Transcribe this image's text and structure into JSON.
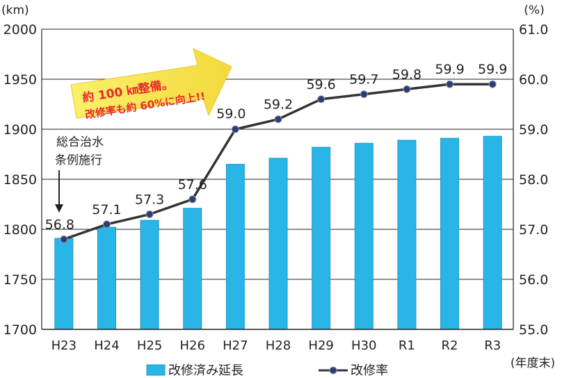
{
  "chart_data": {
    "type": "bar+line",
    "categories": [
      "H23",
      "H24",
      "H25",
      "H26",
      "H27",
      "H28",
      "H29",
      "H30",
      "R1",
      "R2",
      "R3"
    ],
    "series": [
      {
        "name": "改修済み延長",
        "type": "bar",
        "axis": "left",
        "values": [
          1791,
          1802,
          1809,
          1821,
          1865,
          1871,
          1882,
          1886,
          1889,
          1891,
          1893
        ]
      },
      {
        "name": "改修率",
        "type": "line",
        "axis": "right",
        "values": [
          56.8,
          57.1,
          57.3,
          57.6,
          59.0,
          59.2,
          59.6,
          59.7,
          59.8,
          59.9,
          59.9
        ],
        "labels": [
          "56.8",
          "57.1",
          "57.3",
          "57.6",
          "59.0",
          "59.2",
          "59.6",
          "59.7",
          "59.8",
          "59.9",
          "59.9"
        ]
      }
    ],
    "y_left": {
      "unit_label": "(km)",
      "ylim": [
        1700,
        2000
      ],
      "ticks": [
        "1700",
        "1750",
        "1800",
        "1850",
        "1900",
        "1950",
        "2000"
      ]
    },
    "y_right": {
      "unit_label": "(%)",
      "ylim": [
        55.0,
        61.0
      ],
      "ticks": [
        "55.0",
        "56.0",
        "57.0",
        "58.0",
        "59.0",
        "60.0",
        "61.0"
      ]
    },
    "x_unit_label": "(年度末)",
    "grid": "horizontal",
    "legend_position": "bottom",
    "annotations": {
      "note_line1": "総合治水",
      "note_line2": "条例施行",
      "callout_line1": "約 100 ㎞整備。",
      "callout_line2": "改修率も約 60%に向上!!"
    },
    "colors": {
      "bar": "#29b5e6",
      "bar_edge": "#1f98c8",
      "line": "#333333",
      "marker": "#2c3e6e",
      "grid": "#231f20",
      "callout_fill": "#f7e94a",
      "callout_text": "#e8292d"
    }
  }
}
